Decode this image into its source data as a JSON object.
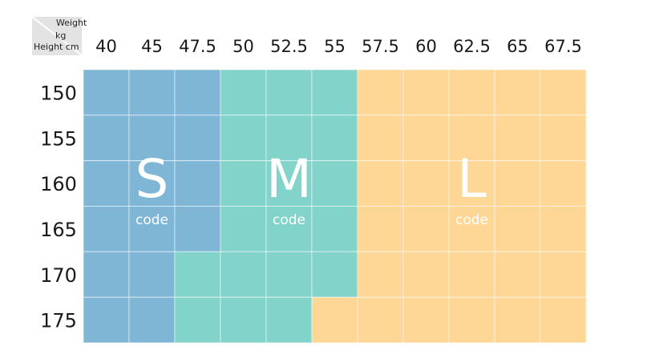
{
  "chart_data": {
    "type": "heatmap",
    "corner": {
      "col_label": "Weight",
      "col_unit": "kg",
      "row_label": "Height cm"
    },
    "weights": [
      "40",
      "45",
      "47.5",
      "50",
      "52.5",
      "55",
      "57.5",
      "60",
      "62.5",
      "65",
      "67.5"
    ],
    "heights": [
      "150",
      "155",
      "160",
      "165",
      "170",
      "175"
    ],
    "grid": [
      [
        "S",
        "S",
        "S",
        "M",
        "M",
        "M",
        "L",
        "L",
        "L",
        "L",
        "L"
      ],
      [
        "S",
        "S",
        "S",
        "M",
        "M",
        "M",
        "L",
        "L",
        "L",
        "L",
        "L"
      ],
      [
        "S",
        "S",
        "S",
        "M",
        "M",
        "M",
        "L",
        "L",
        "L",
        "L",
        "L"
      ],
      [
        "S",
        "S",
        "S",
        "M",
        "M",
        "M",
        "L",
        "L",
        "L",
        "L",
        "L"
      ],
      [
        "S",
        "S",
        "M",
        "M",
        "M",
        "M",
        "L",
        "L",
        "L",
        "L",
        "L"
      ],
      [
        "S",
        "S",
        "M",
        "M",
        "M",
        "L",
        "L",
        "L",
        "L",
        "L",
        "L"
      ]
    ],
    "sizes": [
      {
        "name": "S",
        "code": "code",
        "color": "#7fb5d5"
      },
      {
        "name": "M",
        "code": "code",
        "color": "#82d3c9"
      },
      {
        "name": "L",
        "code": "code",
        "color": "#fed696"
      }
    ]
  }
}
